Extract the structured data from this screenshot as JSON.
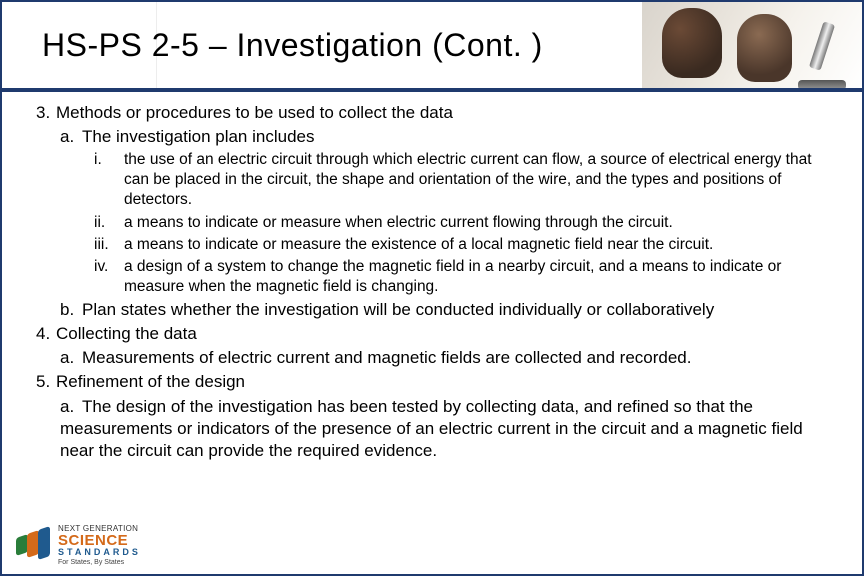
{
  "title": "HS-PS 2-5 – Investigation (Cont. )",
  "items": [
    {
      "level": 1,
      "num": "3.",
      "text": "Methods or procedures to be used to collect the data"
    },
    {
      "level": 2,
      "num": "a.",
      "text": "The investigation plan includes"
    },
    {
      "level": 3,
      "num": "i.",
      "text": "the use of an electric circuit through which electric current can flow, a source of electrical energy that can be placed in the circuit, the shape and orientation of the wire, and the types and positions of detectors."
    },
    {
      "level": 3,
      "num": "ii.",
      "text": "a means to indicate or measure when electric current flowing through the circuit."
    },
    {
      "level": 3,
      "num": "iii.",
      "text": "a means to indicate or measure the existence of a local magnetic field near the circuit."
    },
    {
      "level": 3,
      "num": "iv.",
      "text": "a design of a system to change the magnetic field in a nearby circuit, and a means to indicate or measure when the magnetic field is changing."
    },
    {
      "level": 2,
      "num": "b.",
      "text": "Plan states whether the investigation will be conducted individually or collaboratively"
    },
    {
      "level": 1,
      "num": "4.",
      "text": "Collecting the data"
    },
    {
      "level": 2,
      "num": "a.",
      "text": "Measurements of electric current and magnetic fields are collected and recorded."
    },
    {
      "level": 1,
      "num": "5.",
      "text": "Refinement of the design"
    },
    {
      "level": 2,
      "num": "a.",
      "text": "The design of the investigation has been tested by collecting data, and refined so that the measurements or indicators of the presence of an electric current in the circuit and a magnetic field near the circuit can provide the required evidence."
    }
  ],
  "logo": {
    "line1": "NEXT GENERATION",
    "line2": "SCIENCE",
    "line3": "STANDARDS",
    "line4": "For States, By States"
  },
  "colors": {
    "border": "#1f3a6e",
    "logo_orange": "#d46a1a",
    "logo_blue": "#1f5a8e",
    "logo_green": "#2a7d3a"
  }
}
